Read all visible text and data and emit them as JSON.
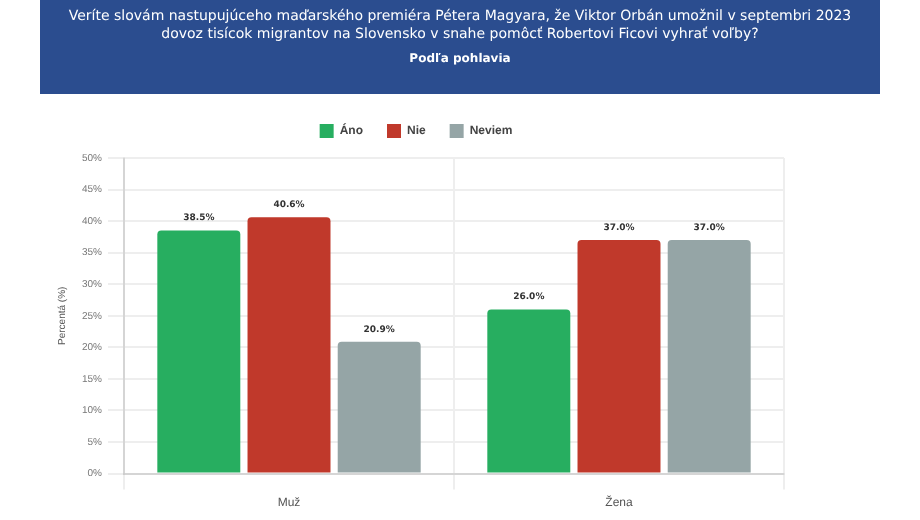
{
  "chart_data": {
    "type": "bar",
    "title": "Veríte slovám nastupujúceho maďarského premiéra Pétera Magyara, že Viktor Orbán umožnil v septembri 2023 dovoz tisícok migrantov na Slovensko v snahe pomôcť Robertovi Ficovi vyhrať voľby?",
    "subtitle": "Podľa pohlavia",
    "ylabel": "Percentá (%)",
    "categories": [
      "Muž",
      "Žena"
    ],
    "series": [
      {
        "name": "Áno",
        "color": "#27ae60",
        "values": [
          38.5,
          26.0
        ],
        "value_labels": [
          "38.5%",
          "26.0%"
        ]
      },
      {
        "name": "Nie",
        "color": "#c0392b",
        "values": [
          40.6,
          37.0
        ],
        "value_labels": [
          "40.6%",
          "37.0%"
        ]
      },
      {
        "name": "Neviem",
        "color": "#95a5a6",
        "values": [
          20.9,
          37.0
        ],
        "value_labels": [
          "20.9%",
          "37.0%"
        ]
      }
    ],
    "ylim": [
      0,
      50
    ],
    "yticks": [
      {
        "value": 0,
        "label": "0%"
      },
      {
        "value": 5,
        "label": "5%"
      },
      {
        "value": 10,
        "label": "10%"
      },
      {
        "value": 15,
        "label": "15%"
      },
      {
        "value": 20,
        "label": "20%"
      },
      {
        "value": 25,
        "label": "25%"
      },
      {
        "value": 30,
        "label": "30%"
      },
      {
        "value": 35,
        "label": "35%"
      },
      {
        "value": 40,
        "label": "40%"
      },
      {
        "value": 45,
        "label": "45%"
      },
      {
        "value": 50,
        "label": "50%"
      }
    ],
    "grid": true,
    "legend": "top"
  }
}
